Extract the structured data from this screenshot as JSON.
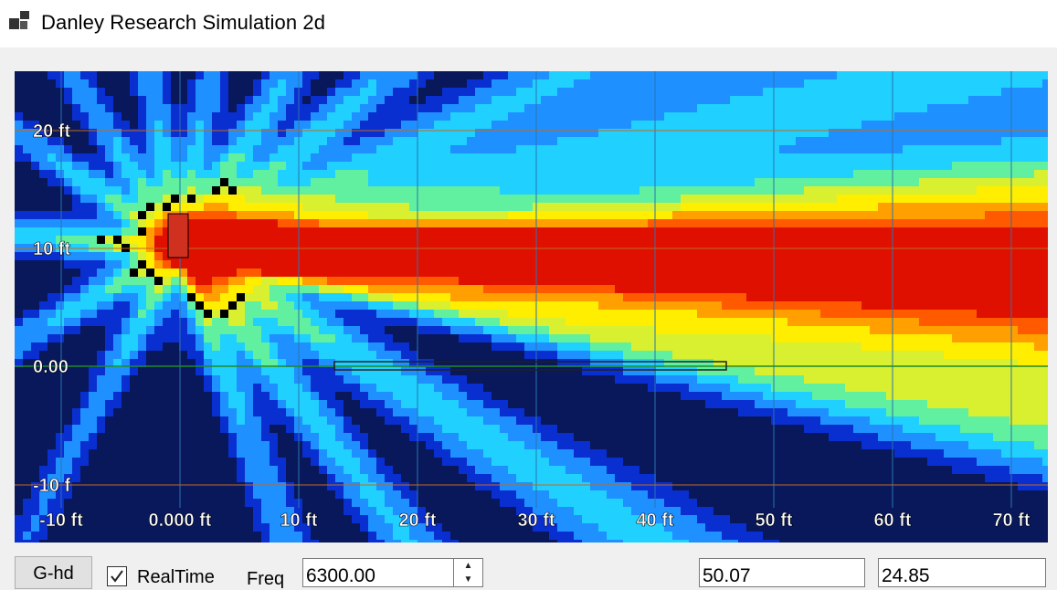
{
  "window": {
    "title": "Danley Research Simulation 2d"
  },
  "plot": {
    "x_ticks": [
      "-10 ft",
      "0.000 ft",
      "10 ft",
      "20 ft",
      "30 ft",
      "40 ft",
      "50 ft",
      "60 ft",
      "70 ft"
    ],
    "y_ticks": [
      "20 ft",
      "10 ft",
      "0.00",
      "-10 f"
    ],
    "colors": {
      "background": "#08185a",
      "grid": "#2a73b0",
      "hline": "#c06a20",
      "zero_line": "#1e8a2a"
    },
    "colormap": [
      "#08185a",
      "#0a2fd0",
      "#1e90ff",
      "#20d0ff",
      "#60f0a0",
      "#d8f030",
      "#ffee00",
      "#ffa000",
      "#ff5a00",
      "#e01000",
      "#000000"
    ],
    "source": {
      "x_ft": 0,
      "y_ft": 10
    },
    "surface": {
      "x_start_ft": 13,
      "x_end_ft": 46,
      "y_ft": 0
    }
  },
  "toolbar": {
    "gbtn_label": "G-hd",
    "realtime_label": "RealTime",
    "realtime_checked": true,
    "freq_label": "Freq",
    "freq_value": "6300.00",
    "x_value": "50.07",
    "y_value": "24.85"
  }
}
